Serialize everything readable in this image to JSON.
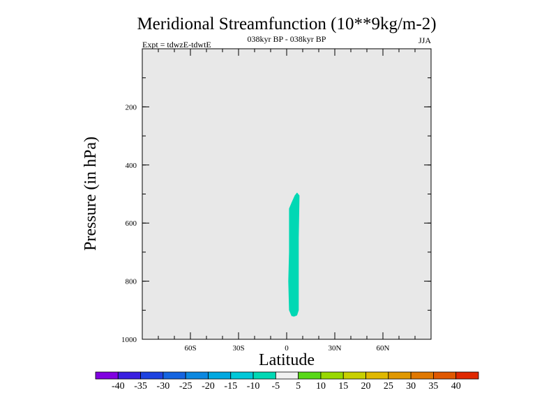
{
  "chart_data": {
    "type": "heatmap",
    "title": "Meridional Streamfunction (10**9kg/m-2)",
    "subtitle_center": "038kyr BP - 038kyr BP",
    "subtitle_left": "Expt = tdwzE-tdwtE",
    "subtitle_right": "JJA",
    "xlabel": "Latitude",
    "ylabel": "Pressure (in hPa)",
    "xlim": [
      -90,
      90
    ],
    "ylim": [
      1000,
      0
    ],
    "x_ticks": [
      {
        "value": -60,
        "label": "60S"
      },
      {
        "value": -30,
        "label": "30S"
      },
      {
        "value": 0,
        "label": "0"
      },
      {
        "value": 30,
        "label": "30N"
      },
      {
        "value": 60,
        "label": "60N"
      }
    ],
    "x_minor_step": 10,
    "y_ticks": [
      {
        "value": 200,
        "label": "200"
      },
      {
        "value": 400,
        "label": "400"
      },
      {
        "value": 600,
        "label": "600"
      },
      {
        "value": 800,
        "label": "800"
      },
      {
        "value": 1000,
        "label": "1000"
      }
    ],
    "y_minor_step": 100,
    "background_value_color": "#e8e8e8",
    "contour_regions": [
      {
        "level": "-10 to -5",
        "color": "#00d8b4",
        "outline": [
          [
            6.5,
            495
          ],
          [
            8,
            505
          ],
          [
            7.5,
            650
          ],
          [
            7.5,
            900
          ],
          [
            6.5,
            918
          ],
          [
            4.5,
            922
          ],
          [
            3,
            920
          ],
          [
            1.5,
            900
          ],
          [
            1,
            800
          ],
          [
            1.5,
            700
          ],
          [
            1.5,
            550
          ],
          [
            3,
            530
          ],
          [
            5,
            505
          ]
        ]
      }
    ],
    "colorbar": {
      "labels": [
        "-40",
        "-35",
        "-30",
        "-25",
        "-20",
        "-15",
        "-10",
        "-5",
        "5",
        "10",
        "15",
        "20",
        "25",
        "30",
        "35",
        "40"
      ],
      "colors": [
        "#8000e0",
        "#3a20e0",
        "#1e42e0",
        "#1464e0",
        "#0c88e0",
        "#00a8e0",
        "#00c8d8",
        "#00d8b4",
        "#f0f0f0",
        "#58d818",
        "#98d800",
        "#c8d000",
        "#e0b800",
        "#e09800",
        "#e07800",
        "#e05800",
        "#e02800"
      ]
    }
  }
}
